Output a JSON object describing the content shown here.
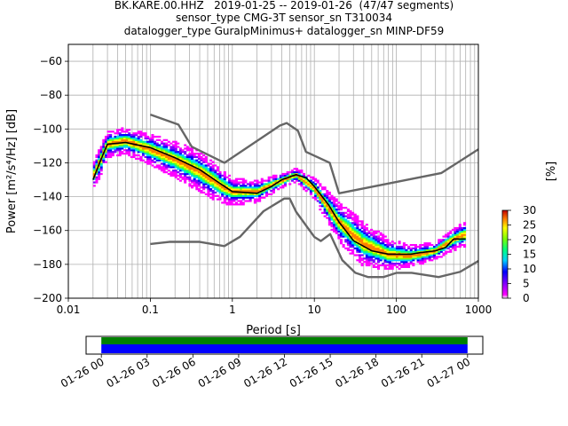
{
  "title": {
    "line1": "BK.KARE.00.HHZ   2019-01-25 -- 2019-01-26  (47/47 segments)",
    "line2": "sensor_type CMG-3T sensor_sn T310034",
    "line3": "datalogger_type GuralpMinimus+ datalogger_sn MINP-DF59"
  },
  "chart_data": [
    {
      "type": "heatmap",
      "subtype": "probabilistic power spectral density",
      "xlabel": "Period [s]",
      "ylabel": "Power [m²/s⁴/Hz] [dB]",
      "xscale": "log",
      "xlim": [
        0.01,
        1000
      ],
      "ylim": [
        -200,
        -50
      ],
      "grid": true,
      "xticks": [
        {
          "value": 0.01,
          "label": "0.01"
        },
        {
          "value": 0.1,
          "label": "0.1"
        },
        {
          "value": 1,
          "label": "1"
        },
        {
          "value": 10,
          "label": "10"
        },
        {
          "value": 100,
          "label": "100"
        },
        {
          "value": 1000,
          "label": "1000"
        }
      ],
      "yticks": [
        {
          "value": -60,
          "label": "−60"
        },
        {
          "value": -80,
          "label": "−80"
        },
        {
          "value": -100,
          "label": "−100"
        },
        {
          "value": -120,
          "label": "−120"
        },
        {
          "value": -140,
          "label": "−140"
        },
        {
          "value": -160,
          "label": "−160"
        },
        {
          "value": -180,
          "label": "−180"
        },
        {
          "value": -200,
          "label": "−200"
        }
      ],
      "colorbar": {
        "label": "[%]",
        "range": [
          0,
          30
        ],
        "ticks": [
          "0",
          "5",
          "10",
          "15",
          "20",
          "25",
          "30"
        ],
        "colormap": "pqlx"
      },
      "distribution": [
        {
          "period": 0.02,
          "center": -128,
          "spread": 6
        },
        {
          "period": 0.025,
          "center": -118,
          "spread": 7
        },
        {
          "period": 0.03,
          "center": -109,
          "spread": 6
        },
        {
          "period": 0.05,
          "center": -107,
          "spread": 6
        },
        {
          "period": 0.1,
          "center": -112,
          "spread": 7
        },
        {
          "period": 0.2,
          "center": -118,
          "spread": 8
        },
        {
          "period": 0.4,
          "center": -125,
          "spread": 9
        },
        {
          "period": 0.7,
          "center": -133,
          "spread": 8
        },
        {
          "period": 1,
          "center": -137,
          "spread": 6
        },
        {
          "period": 2,
          "center": -137,
          "spread": 5
        },
        {
          "period": 3,
          "center": -133,
          "spread": 4
        },
        {
          "period": 6,
          "center": -127,
          "spread": 3
        },
        {
          "period": 10,
          "center": -135,
          "spread": 5
        },
        {
          "period": 20,
          "center": -155,
          "spread": 9
        },
        {
          "period": 40,
          "center": -168,
          "spread": 10
        },
        {
          "period": 80,
          "center": -174,
          "spread": 7
        },
        {
          "period": 150,
          "center": -175,
          "spread": 5
        },
        {
          "period": 300,
          "center": -172,
          "spread": 4
        },
        {
          "period": 500,
          "center": -165,
          "spread": 5
        },
        {
          "period": 700,
          "center": -162,
          "spread": 6
        }
      ],
      "series": [
        {
          "role": "mean",
          "color": "#000000",
          "x": [
            0.02,
            0.025,
            0.03,
            0.05,
            0.1,
            0.2,
            0.4,
            0.7,
            1,
            2,
            3,
            4,
            6,
            8,
            10,
            15,
            20,
            30,
            50,
            80,
            100,
            150,
            200,
            300,
            400,
            500,
            700
          ],
          "y": [
            -130,
            -118,
            -109,
            -108,
            -111,
            -117,
            -124,
            -132,
            -137,
            -138,
            -134,
            -130,
            -127,
            -129,
            -134,
            -145,
            -155,
            -166,
            -172,
            -174,
            -174,
            -174,
            -173,
            -172,
            -170,
            -165,
            -165
          ]
        },
        {
          "role": "new-high-noise-model",
          "color": "#666666",
          "x": [
            0.1,
            0.22,
            0.32,
            0.8,
            3.8,
            4.6,
            6.3,
            7.9,
            15.4,
            20,
            354.8,
            1000
          ],
          "y": [
            -91.5,
            -97.4,
            -110.5,
            -120,
            -98,
            -96.5,
            -101,
            -113.5,
            -120,
            -138,
            -126,
            -112
          ]
        },
        {
          "role": "new-low-noise-model",
          "color": "#666666",
          "x": [
            0.1,
            0.17,
            0.4,
            0.8,
            1.24,
            2.4,
            4.3,
            5,
            6,
            10,
            12,
            15.6,
            21.9,
            31.6,
            45,
            70,
            101,
            154,
            328,
            600,
            1000
          ],
          "y": [
            -168,
            -166.7,
            -166.7,
            -169.2,
            -163.7,
            -148.6,
            -141.1,
            -141.1,
            -149,
            -163.8,
            -166.2,
            -162.1,
            -177.5,
            -185,
            -187.5,
            -187.5,
            -185,
            -185,
            -187.5,
            -184.4,
            -178
          ]
        }
      ]
    },
    {
      "type": "timeline",
      "subtype": "data coverage",
      "xticks": [
        "01-26 00",
        "01-26 03",
        "01-26 06",
        "01-26 09",
        "01-26 12",
        "01-26 15",
        "01-26 18",
        "01-26 21",
        "01-27 00"
      ],
      "xlim_hours": [
        -1,
        25
      ],
      "bars": [
        {
          "row": "top",
          "color": "#008000",
          "start_hour": 0,
          "end_hour": 24
        },
        {
          "row": "bottom",
          "color": "#0000ff",
          "start_hour": 0,
          "end_hour": 24
        }
      ]
    }
  ]
}
